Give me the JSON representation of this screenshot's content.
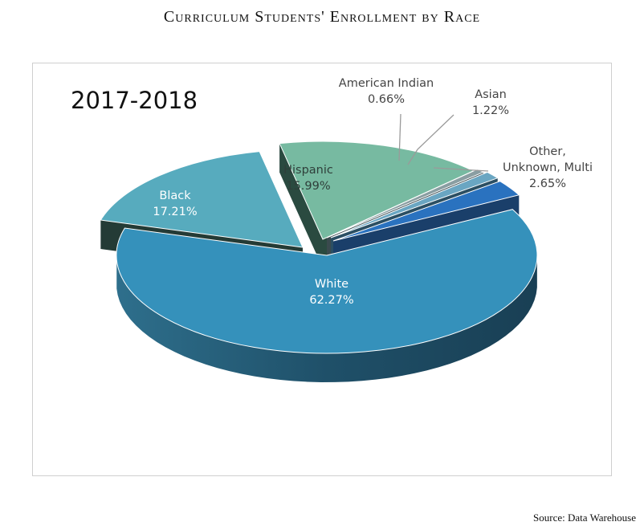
{
  "page": {
    "title": "Curriculum Students' Enrollment by Race",
    "source": "Source: Data Warehouse"
  },
  "chart_data": {
    "type": "pie",
    "subtitle": "2017-2018",
    "slices": [
      {
        "label": "White",
        "value": 62.27,
        "display": "62.27%",
        "color": "#3591bb"
      },
      {
        "label": "Black",
        "value": 17.21,
        "display": "17.21%",
        "color": "#57abbe"
      },
      {
        "label": "Hispanic",
        "value": 15.99,
        "display": "15.99%",
        "color": "#77baa1"
      },
      {
        "label": "American Indian",
        "value": 0.66,
        "display": "0.66%",
        "color": "#8a9ea2"
      },
      {
        "label": "Asian",
        "value": 1.22,
        "display": "1.22%",
        "color": "#6aa6c2"
      },
      {
        "label": "Other, Unknown, Multi",
        "value": 2.65,
        "display": "2.65%",
        "color": "#2a72bf"
      }
    ],
    "style": "3d-exploded"
  }
}
